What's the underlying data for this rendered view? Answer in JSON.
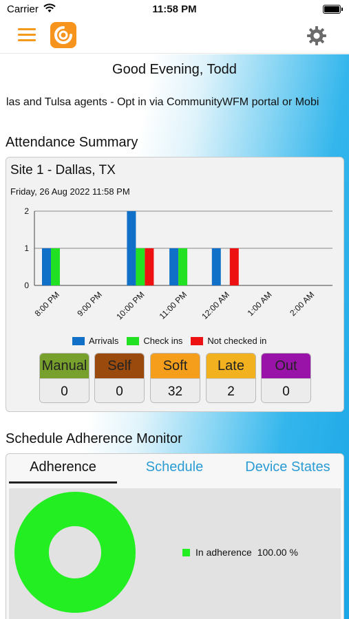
{
  "status_bar": {
    "carrier": "Carrier",
    "time": "11:58 PM"
  },
  "header": {
    "menu_icon": "hamburger-menu-icon",
    "logo_icon": "app-logo-icon",
    "settings_icon": "gear-icon"
  },
  "greeting": "Good Evening, Todd",
  "announcement": "las and Tulsa agents  - Opt in via CommunityWFM portal or Mobi",
  "attendance": {
    "title": "Attendance Summary",
    "site": "Site 1 - Dallas, TX",
    "date": "Friday, 26 Aug 2022 11:58 PM",
    "tiles": [
      {
        "label": "Manual",
        "value": "0",
        "color": "#77a02c"
      },
      {
        "label": "Self",
        "value": "0",
        "color": "#9a4a0c"
      },
      {
        "label": "Soft",
        "value": "32",
        "color": "#f59e1b"
      },
      {
        "label": "Late",
        "value": "2",
        "color": "#f2b21f"
      },
      {
        "label": "Out",
        "value": "0",
        "color": "#9a13a8"
      }
    ]
  },
  "chart_data": {
    "type": "bar",
    "categories": [
      "8:00 PM",
      "9:00 PM",
      "10:00 PM",
      "11:00 PM",
      "12:00 AM",
      "1:00 AM",
      "2:00 AM"
    ],
    "series": [
      {
        "name": "Arrivals",
        "color": "#1070c8",
        "values": [
          1,
          0,
          2,
          1,
          1,
          0,
          0
        ]
      },
      {
        "name": "Check ins",
        "color": "#22e022",
        "values": [
          1,
          0,
          1,
          1,
          0,
          0,
          0
        ]
      },
      {
        "name": "Not checked in",
        "color": "#ee1111",
        "values": [
          0,
          0,
          1,
          0,
          1,
          0,
          0
        ]
      }
    ],
    "ylim": [
      0,
      2
    ],
    "yticks": [
      0,
      1,
      2
    ],
    "grid": true,
    "legend": "bottom"
  },
  "adherence_monitor": {
    "title": "Schedule Adherence Monitor",
    "tabs": [
      "Adherence",
      "Schedule",
      "Device States"
    ],
    "active_tab": "Adherence",
    "legend_label": "In adherence",
    "legend_value": "100.00 %",
    "donut_color": "#22ee22",
    "in_adherence_fraction": 1.0
  }
}
